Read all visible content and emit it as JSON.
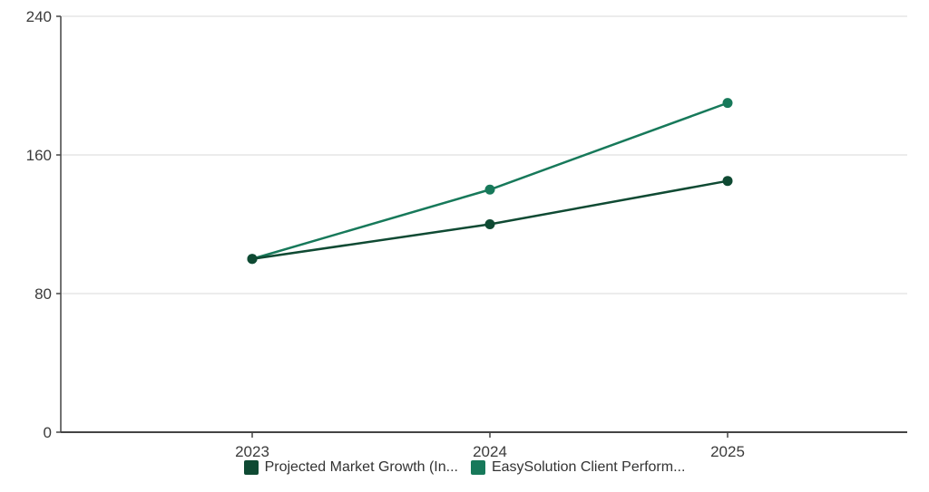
{
  "chart_data": {
    "type": "line",
    "title": "",
    "xlabel": "",
    "ylabel": "",
    "categories": [
      "2023",
      "2024",
      "2025"
    ],
    "ylim": [
      0,
      240
    ],
    "yticks": [
      0,
      80,
      160,
      240
    ],
    "grid": true,
    "legend_position": "bottom",
    "series": [
      {
        "name": "Projected Market Growth (In...",
        "values": [
          100,
          120,
          145
        ],
        "color": "#0f4a33"
      },
      {
        "name": "EasySolution Client Perform...",
        "values": [
          100,
          140,
          190
        ],
        "color": "#17795a"
      }
    ]
  }
}
